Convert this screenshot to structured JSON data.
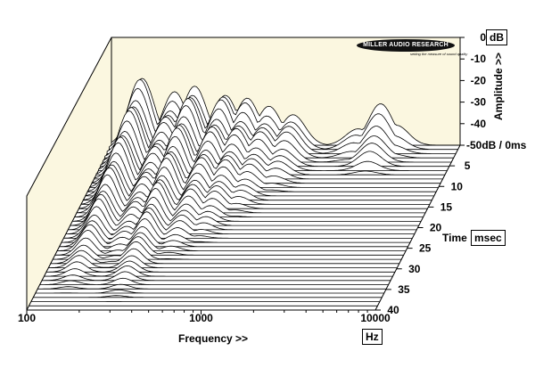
{
  "chart_data": {
    "type": "waterfall",
    "title": "",
    "xlabel": "Frequency >>",
    "x_unit": "Hz",
    "x_scale": "log",
    "xlim": [
      100,
      10000
    ],
    "x_ticks": [
      "100",
      "1000",
      "10000"
    ],
    "ylabel": "Amplitude >>",
    "y_unit": "dB",
    "ylim": [
      -50,
      0
    ],
    "y_ticks": [
      "0",
      "-10",
      "-20",
      "-30",
      "-40",
      "-50dB / 0ms"
    ],
    "zlabel": "Time",
    "z_unit": "msec",
    "zlim": [
      0,
      40
    ],
    "z_ticks": [
      "5",
      "10",
      "15",
      "20",
      "25",
      "30",
      "35",
      "40"
    ],
    "slice_count": 40,
    "decay_peaks": [
      {
        "freq": 150,
        "level": -19,
        "decay_ms": 36
      },
      {
        "freq": 230,
        "level": -27,
        "decay_ms": 30
      },
      {
        "freq": 300,
        "level": -22,
        "decay_ms": 38
      },
      {
        "freq": 450,
        "level": -25,
        "decay_ms": 28
      },
      {
        "freq": 600,
        "level": -29,
        "decay_ms": 24
      },
      {
        "freq": 800,
        "level": -33,
        "decay_ms": 18
      },
      {
        "freq": 1100,
        "level": -35,
        "decay_ms": 12
      },
      {
        "freq": 2600,
        "level": -42,
        "decay_ms": 5
      },
      {
        "freq": 3500,
        "level": -32,
        "decay_ms": 8
      },
      {
        "freq": 4300,
        "level": -41,
        "decay_ms": 4
      }
    ]
  },
  "logo": {
    "name": "MILLER AUDIO RESEARCH",
    "tagline": "setting the measure of sound quality"
  },
  "colors": {
    "background_wall": "#fbf7e0",
    "trace": "#000000",
    "fill": "#ffffff"
  }
}
